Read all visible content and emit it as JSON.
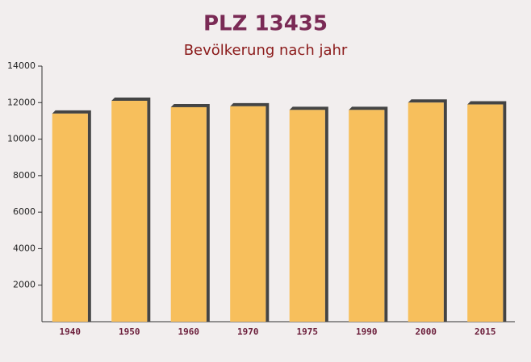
{
  "chart_data": {
    "type": "bar",
    "title": "PLZ 13435",
    "subtitle": "Bevölkerung nach jahr",
    "categories": [
      "1940",
      "1950",
      "1960",
      "1970",
      "1975",
      "1990",
      "2000",
      "2015"
    ],
    "values": [
      11400,
      12100,
      11750,
      11800,
      11600,
      11600,
      12000,
      11900
    ],
    "color": "#f7bf5c",
    "ylim": [
      0,
      14000
    ],
    "yticks": [
      2000,
      4000,
      6000,
      8000,
      10000,
      12000,
      14000
    ]
  }
}
